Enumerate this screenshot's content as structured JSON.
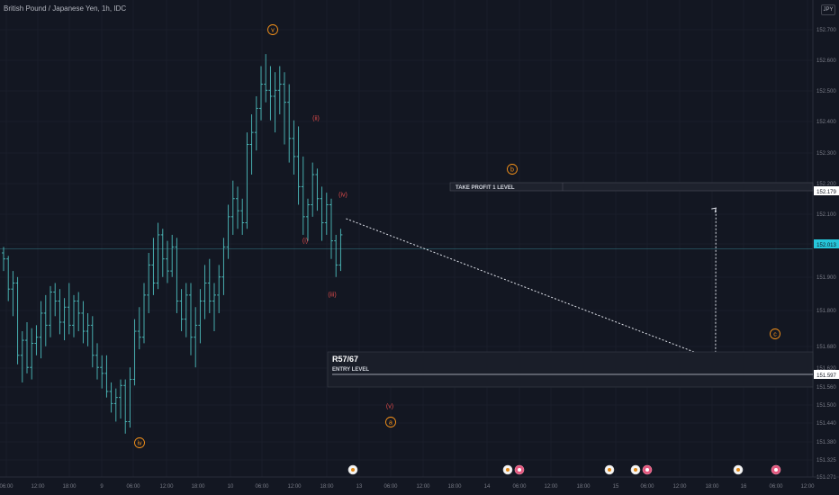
{
  "chart_title": "British Pound / Japanese Yen, 1h, IDC",
  "currency_button": "JPY",
  "colors": {
    "background": "#131722",
    "bar": "#4dbdbd",
    "grid": "#1e2230",
    "wave_orange": "#f7931a",
    "wave_red": "#e04b4b",
    "current_price_bg": "#26c6da"
  },
  "price_axis": {
    "ticks": [
      "152.700",
      "152.600",
      "152.500",
      "152.400",
      "152.300",
      "152.200",
      "152.100",
      "152.000",
      "151.900",
      "151.800",
      "151.680",
      "151.620",
      "151.560",
      "151.500",
      "151.440",
      "151.380",
      "151.325",
      "151.271"
    ],
    "label_take_profit": "152.179",
    "label_current": "152.013",
    "label_entry": "151.597"
  },
  "time_axis": {
    "ticks": [
      "06:00",
      "12:00",
      "18:00",
      "9",
      "06:00",
      "12:00",
      "18:00",
      "10",
      "06:00",
      "12:00",
      "18:00",
      "13",
      "06:00",
      "12:00",
      "18:00",
      "14",
      "06:00",
      "12:00",
      "18:00",
      "15",
      "06:00",
      "12:00",
      "18:00",
      "16",
      "06:00",
      "12:00"
    ]
  },
  "annotations": {
    "take_profit_label": "TAKE PROFIT 1 LEVEL",
    "entry_title": "R57/67",
    "entry_label": "ENTRY LEVEL",
    "waves": [
      {
        "text": "v",
        "color": "orange",
        "circle": true
      },
      {
        "text": "iv",
        "color": "orange",
        "circle": true
      },
      {
        "text": "(ii)",
        "color": "red",
        "circle": false
      },
      {
        "text": "(iv)",
        "color": "red",
        "circle": false
      },
      {
        "text": "(i)",
        "color": "red",
        "circle": false
      },
      {
        "text": "(iii)",
        "color": "red",
        "circle": false
      },
      {
        "text": "(v)",
        "color": "red",
        "circle": false
      },
      {
        "text": "a",
        "color": "orange",
        "circle": true
      },
      {
        "text": "b",
        "color": "orange",
        "circle": true
      },
      {
        "text": "c",
        "color": "orange",
        "circle": true
      }
    ]
  },
  "event_icons": [
    "event-icon",
    "flag-icon",
    "event-icon",
    "event-icon",
    "flag-icon",
    "event-icon",
    "flag-icon"
  ],
  "chart_data": {
    "type": "ohlc",
    "y_range": [
      151.271,
      152.75
    ],
    "bars": [
      [
        152.0,
        152.02,
        151.94,
        151.98
      ],
      [
        151.98,
        151.99,
        151.84,
        151.88
      ],
      [
        151.88,
        151.94,
        151.79,
        151.9
      ],
      [
        151.9,
        151.92,
        151.63,
        151.66
      ],
      [
        151.66,
        151.74,
        151.57,
        151.71
      ],
      [
        151.71,
        151.77,
        151.6,
        151.62
      ],
      [
        151.62,
        151.75,
        151.58,
        151.7
      ],
      [
        151.7,
        151.76,
        151.66,
        151.72
      ],
      [
        151.72,
        151.84,
        151.65,
        151.8
      ],
      [
        151.8,
        151.86,
        151.69,
        151.76
      ],
      [
        151.76,
        151.89,
        151.72,
        151.87
      ],
      [
        151.87,
        151.9,
        151.79,
        151.84
      ],
      [
        151.84,
        151.88,
        151.73,
        151.77
      ],
      [
        151.77,
        151.85,
        151.71,
        151.82
      ],
      [
        151.82,
        151.9,
        151.73,
        151.76
      ],
      [
        151.76,
        151.86,
        151.72,
        151.84
      ],
      [
        151.84,
        151.87,
        151.74,
        151.8
      ],
      [
        151.8,
        151.84,
        151.7,
        151.74
      ],
      [
        151.74,
        151.8,
        151.69,
        151.76
      ],
      [
        151.76,
        151.79,
        151.62,
        151.66
      ],
      [
        151.66,
        151.7,
        151.58,
        151.62
      ],
      [
        151.62,
        151.66,
        151.55,
        151.6
      ],
      [
        151.6,
        151.66,
        151.52,
        151.54
      ],
      [
        151.54,
        151.57,
        151.47,
        151.5
      ],
      [
        151.5,
        151.55,
        151.44,
        151.52
      ],
      [
        151.52,
        151.58,
        151.45,
        151.56
      ],
      [
        151.56,
        151.58,
        151.4,
        151.44
      ],
      [
        151.44,
        151.62,
        151.42,
        151.58
      ],
      [
        151.58,
        151.78,
        151.56,
        151.74
      ],
      [
        151.74,
        151.82,
        151.68,
        151.72
      ],
      [
        151.72,
        151.9,
        151.7,
        151.86
      ],
      [
        151.86,
        152.0,
        151.8,
        151.96
      ],
      [
        151.96,
        152.05,
        151.86,
        151.9
      ],
      [
        151.9,
        152.1,
        151.88,
        152.06
      ],
      [
        152.06,
        152.08,
        151.92,
        151.98
      ],
      [
        151.98,
        152.04,
        151.9,
        151.94
      ],
      [
        151.94,
        152.06,
        151.92,
        152.02
      ],
      [
        152.02,
        152.05,
        151.8,
        151.84
      ],
      [
        151.84,
        151.88,
        151.74,
        151.78
      ],
      [
        151.78,
        151.9,
        151.72,
        151.86
      ],
      [
        151.86,
        151.9,
        151.66,
        151.72
      ],
      [
        151.72,
        151.82,
        151.62,
        151.76
      ],
      [
        151.76,
        151.88,
        151.7,
        151.84
      ],
      [
        151.84,
        151.96,
        151.78,
        151.9
      ],
      [
        151.9,
        151.98,
        151.8,
        151.84
      ],
      [
        151.84,
        151.9,
        151.74,
        151.86
      ],
      [
        151.86,
        151.96,
        151.8,
        151.92
      ],
      [
        151.92,
        152.05,
        151.86,
        152.02
      ],
      [
        152.02,
        152.16,
        151.98,
        152.12
      ],
      [
        152.12,
        152.24,
        152.06,
        152.18
      ],
      [
        152.18,
        152.22,
        152.08,
        152.14
      ],
      [
        152.14,
        152.18,
        152.06,
        152.1
      ],
      [
        152.1,
        152.4,
        152.08,
        152.36
      ],
      [
        152.36,
        152.46,
        152.26,
        152.4
      ],
      [
        152.4,
        152.52,
        152.34,
        152.48
      ],
      [
        152.48,
        152.62,
        152.44,
        152.56
      ],
      [
        152.56,
        152.66,
        152.5,
        152.54
      ],
      [
        152.54,
        152.62,
        152.44,
        152.52
      ],
      [
        152.52,
        152.6,
        152.4,
        152.54
      ],
      [
        152.54,
        152.62,
        152.46,
        152.56
      ],
      [
        152.56,
        152.6,
        152.36,
        152.5
      ],
      [
        152.5,
        152.56,
        152.3,
        152.38
      ],
      [
        152.38,
        152.44,
        152.26,
        152.32
      ],
      [
        152.32,
        152.42,
        152.16,
        152.22
      ],
      [
        152.22,
        152.32,
        152.06,
        152.12
      ],
      [
        152.12,
        152.18,
        152.04,
        152.16
      ],
      [
        152.16,
        152.3,
        152.12,
        152.26
      ],
      [
        152.26,
        152.28,
        152.14,
        152.18
      ],
      [
        152.18,
        152.22,
        152.04,
        152.1
      ],
      [
        152.1,
        152.2,
        152.06,
        152.16
      ],
      [
        152.16,
        152.18,
        151.98,
        152.04
      ],
      [
        152.04,
        152.06,
        151.92,
        151.96
      ],
      [
        151.96,
        152.08,
        151.94,
        152.06
      ]
    ],
    "levels": {
      "take_profit": 152.179,
      "current": 152.013,
      "entry": 151.597
    },
    "projection": [
      [
        152.086,
        151.644
      ],
      [
        152.17,
        151.624
      ]
    ]
  }
}
